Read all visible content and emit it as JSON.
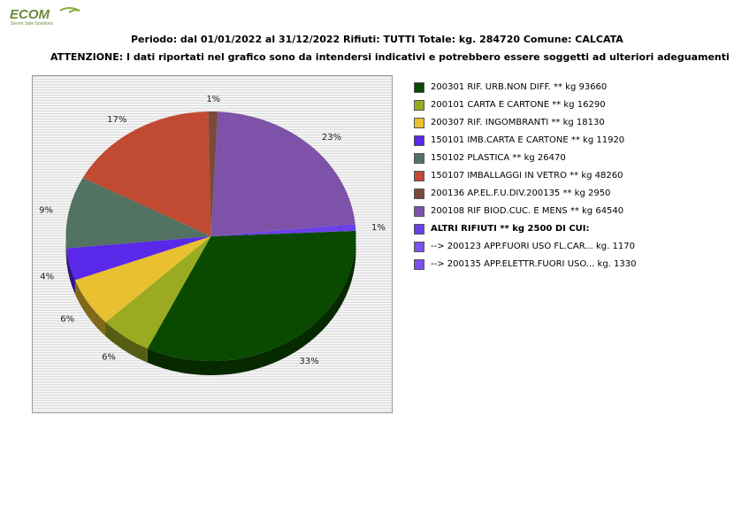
{
  "logo": {
    "text": "ECOM",
    "tagline": "Server Side Solutions"
  },
  "header": {
    "line1": "Periodo: dal 01/01/2022 al 31/12/2022 Rifiuti: TUTTI   Totale: kg. 284720    Comune: CALCATA",
    "line2": "ATTENZIONE: I dati riportati nel grafico sono da intendersi indicativi e potrebbero essere soggetti ad ulteriori adeguamenti"
  },
  "chart_data": {
    "type": "pie",
    "total_kg": 284720,
    "slices": [
      {
        "label": "200301 RIF. URB.NON DIFF. ** kg 93660",
        "value": 93660,
        "pct_label": "33%",
        "color": "#0a4a00"
      },
      {
        "label": "200101 CARTA E CARTONE ** kg 16290",
        "value": 16290,
        "pct_label": "6%",
        "color": "#9aab22"
      },
      {
        "label": "200307 RIF. INGOMBRANTI ** kg 18130",
        "value": 18130,
        "pct_label": "6%",
        "color": "#e8c030"
      },
      {
        "label": "150101 IMB.CARTA E CARTONE ** kg 11920",
        "value": 11920,
        "pct_label": "4%",
        "color": "#5a28e8"
      },
      {
        "label": "150102 PLASTICA ** kg 26470",
        "value": 26470,
        "pct_label": "9%",
        "color": "#527262"
      },
      {
        "label": "150107 IMBALLAGGI IN VETRO ** kg 48260",
        "value": 48260,
        "pct_label": "17%",
        "color": "#c04a32"
      },
      {
        "label": "200136 AP.EL.F.U.DIV.200135 ** kg 2950",
        "value": 2950,
        "pct_label": "1%",
        "color": "#7a4a3a"
      },
      {
        "label": "200108 RIF BIOD.CUC. E MENS ** kg 64540",
        "value": 64540,
        "pct_label": "23%",
        "color": "#7e52a8"
      },
      {
        "label": "ALTRI RIFIUTI ** kg 2500 DI CUI:",
        "value": 2500,
        "pct_label": "1%",
        "color": "#6a40e8"
      }
    ],
    "sub_items": [
      {
        "label": "  -->  200123 APP.FUORI USO FL.CAR... kg. 1170",
        "value": 1170,
        "color": "#7a52f0"
      },
      {
        "label": "  -->  200135 APP.ELETTR.FUORI USO... kg. 1330",
        "value": 1330,
        "color": "#7a52f0"
      }
    ],
    "legend_position": "right"
  }
}
